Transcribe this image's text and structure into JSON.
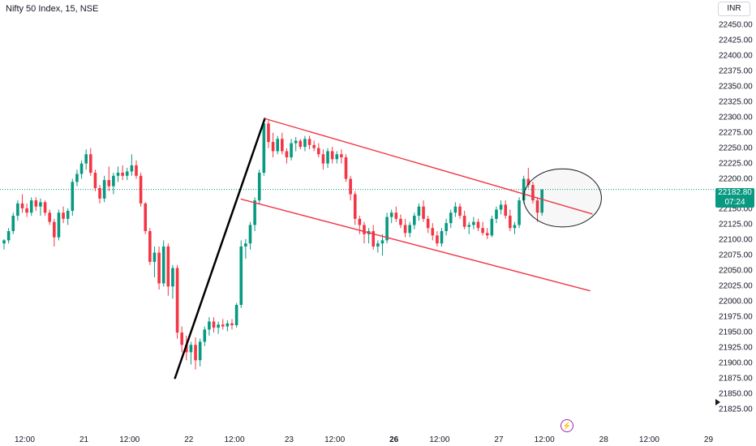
{
  "header": {
    "title": "Nifty 50 Index, 15, NSE",
    "currency": "INR"
  },
  "price_label": {
    "value": "22182.80",
    "countdown": "07:24"
  },
  "flash_icon": "lightning-icon",
  "colors": {
    "up": "#089981",
    "down": "#f23645",
    "trendline": "#f23645",
    "impulse": "#000000",
    "price_line": "#089981",
    "circle": "#131722"
  },
  "chart_data": {
    "type": "candlestick",
    "title": "Nifty 50 Index, 15, NSE",
    "ylim": [
      21815,
      22465
    ],
    "y_ticks": [
      22450,
      22425,
      22400,
      22375,
      22350,
      22325,
      22300,
      22275,
      22250,
      22225,
      22200,
      22175,
      22150,
      22125,
      22100,
      22075,
      22050,
      22025,
      22000,
      21975,
      21950,
      21925,
      21900,
      21875,
      21850,
      21825
    ],
    "y_tick_labels": [
      "22450.00",
      "22425.00",
      "22400.00",
      "22375.00",
      "22350.00",
      "22325.00",
      "22300.00",
      "22275.00",
      "22250.00",
      "22225.00",
      "22200.00",
      "22175.00",
      "22150.00",
      "22125.00",
      "22100.00",
      "22075.00",
      "22050.00",
      "22025.00",
      "22000.00",
      "21975.00",
      "21950.00",
      "21925.00",
      "21900.00",
      "21875.00",
      "21850.00",
      "21825.00"
    ],
    "x_labels": [
      {
        "label": "12:00",
        "index": 4,
        "bold": false
      },
      {
        "label": "21",
        "index": 17,
        "bold": false
      },
      {
        "label": "12:00",
        "index": 27,
        "bold": false
      },
      {
        "label": "22",
        "index": 40,
        "bold": false
      },
      {
        "label": "12:00",
        "index": 50,
        "bold": false
      },
      {
        "label": "23",
        "index": 62,
        "bold": false
      },
      {
        "label": "12:00",
        "index": 72,
        "bold": false
      },
      {
        "label": "26",
        "index": 85,
        "bold": true
      },
      {
        "label": "12:00",
        "index": 95,
        "bold": false
      },
      {
        "label": "27",
        "index": 108,
        "bold": false
      },
      {
        "label": "12:00",
        "index": 118,
        "bold": false
      },
      {
        "label": "28",
        "index": 131,
        "bold": false
      },
      {
        "label": "12:00",
        "index": 141,
        "bold": false
      },
      {
        "label": "29",
        "index": 154,
        "bold": false
      }
    ],
    "last_price": 22182.8,
    "candles": [
      [
        22095,
        22102,
        22085,
        22100
      ],
      [
        22100,
        22120,
        22095,
        22115
      ],
      [
        22115,
        22145,
        22110,
        22140
      ],
      [
        22140,
        22165,
        22132,
        22160
      ],
      [
        22160,
        22175,
        22145,
        22152
      ],
      [
        22152,
        22160,
        22138,
        22145
      ],
      [
        22145,
        22170,
        22140,
        22165
      ],
      [
        22165,
        22170,
        22148,
        22155
      ],
      [
        22155,
        22168,
        22140,
        22162
      ],
      [
        22162,
        22165,
        22140,
        22145
      ],
      [
        22145,
        22150,
        22125,
        22130
      ],
      [
        22130,
        22135,
        22090,
        22105
      ],
      [
        22105,
        22150,
        22100,
        22145
      ],
      [
        22145,
        22155,
        22128,
        22135
      ],
      [
        22135,
        22152,
        22125,
        22148
      ],
      [
        22148,
        22200,
        22140,
        22195
      ],
      [
        22195,
        22215,
        22188,
        22208
      ],
      [
        22208,
        22230,
        22200,
        22225
      ],
      [
        22225,
        22248,
        22215,
        22240
      ],
      [
        22240,
        22250,
        22205,
        22210
      ],
      [
        22210,
        22215,
        22180,
        22185
      ],
      [
        22185,
        22190,
        22160,
        22168
      ],
      [
        22168,
        22205,
        22162,
        22198
      ],
      [
        22198,
        22220,
        22180,
        22188
      ],
      [
        22188,
        22210,
        22175,
        22205
      ],
      [
        22205,
        22220,
        22195,
        22210
      ],
      [
        22210,
        22222,
        22198,
        22205
      ],
      [
        22205,
        22218,
        22198,
        22212
      ],
      [
        22212,
        22240,
        22205,
        22222
      ],
      [
        22222,
        22230,
        22200,
        22205
      ],
      [
        22205,
        22210,
        22155,
        22160
      ],
      [
        22160,
        22162,
        22110,
        22115
      ],
      [
        22115,
        22120,
        22060,
        22065
      ],
      [
        22065,
        22090,
        22040,
        22080
      ],
      [
        22080,
        22090,
        22020,
        22030
      ],
      [
        22030,
        22100,
        22025,
        22090
      ],
      [
        22090,
        22095,
        22010,
        22025
      ],
      [
        22025,
        22060,
        22005,
        22055
      ],
      [
        22055,
        22060,
        21940,
        21950
      ],
      [
        21950,
        21960,
        21918,
        21930
      ],
      [
        21930,
        21945,
        21905,
        21918
      ],
      [
        21918,
        21935,
        21898,
        21930
      ],
      [
        21930,
        21942,
        21890,
        21905
      ],
      [
        21905,
        21940,
        21895,
        21935
      ],
      [
        21935,
        21960,
        21928,
        21955
      ],
      [
        21955,
        21975,
        21945,
        21968
      ],
      [
        21968,
        21975,
        21950,
        21958
      ],
      [
        21958,
        21968,
        21948,
        21963
      ],
      [
        21963,
        21972,
        21955,
        21960
      ],
      [
        21960,
        21970,
        21952,
        21965
      ],
      [
        21965,
        21972,
        21955,
        21962
      ],
      [
        21962,
        21998,
        21958,
        21995
      ],
      [
        21995,
        22100,
        21990,
        22090
      ],
      [
        22090,
        22102,
        22070,
        22095
      ],
      [
        22095,
        22130,
        22085,
        22125
      ],
      [
        22125,
        22170,
        22115,
        22165
      ],
      [
        22165,
        22215,
        22160,
        22210
      ],
      [
        22210,
        22298,
        22205,
        22290
      ],
      [
        22290,
        22295,
        22250,
        22260
      ],
      [
        22260,
        22275,
        22235,
        22245
      ],
      [
        22245,
        22270,
        22240,
        22265
      ],
      [
        22265,
        22275,
        22240,
        22245
      ],
      [
        22245,
        22250,
        22225,
        22235
      ],
      [
        22235,
        22265,
        22230,
        22258
      ],
      [
        22258,
        22268,
        22245,
        22262
      ],
      [
        22262,
        22265,
        22248,
        22252
      ],
      [
        22252,
        22270,
        22245,
        22265
      ],
      [
        22265,
        22270,
        22248,
        22255
      ],
      [
        22255,
        22262,
        22245,
        22250
      ],
      [
        22250,
        22258,
        22235,
        22240
      ],
      [
        22240,
        22248,
        22215,
        22225
      ],
      [
        22225,
        22250,
        22218,
        22245
      ],
      [
        22245,
        22252,
        22225,
        22232
      ],
      [
        22232,
        22245,
        22225,
        22240
      ],
      [
        22240,
        22248,
        22225,
        22235
      ],
      [
        22235,
        22240,
        22195,
        22200
      ],
      [
        22200,
        22205,
        22165,
        22175
      ],
      [
        22175,
        22180,
        22125,
        22135
      ],
      [
        22135,
        22140,
        22110,
        22125
      ],
      [
        22125,
        22130,
        22095,
        22110
      ],
      [
        22110,
        22120,
        22095,
        22115
      ],
      [
        22115,
        22125,
        22085,
        22090
      ],
      [
        22090,
        22100,
        22080,
        22095
      ],
      [
        22095,
        22110,
        22075,
        22100
      ],
      [
        22100,
        22145,
        22095,
        22138
      ],
      [
        22138,
        22150,
        22128,
        22145
      ],
      [
        22145,
        22155,
        22130,
        22135
      ],
      [
        22135,
        22142,
        22120,
        22125
      ],
      [
        22125,
        22135,
        22105,
        22112
      ],
      [
        22112,
        22130,
        22105,
        22125
      ],
      [
        22125,
        22145,
        22118,
        22140
      ],
      [
        22140,
        22160,
        22132,
        22155
      ],
      [
        22155,
        22165,
        22130,
        22135
      ],
      [
        22135,
        22140,
        22112,
        22120
      ],
      [
        22120,
        22128,
        22100,
        22108
      ],
      [
        22108,
        22115,
        22090,
        22095
      ],
      [
        22095,
        22120,
        22090,
        22115
      ],
      [
        22115,
        22135,
        22108,
        22128
      ],
      [
        22128,
        22150,
        22120,
        22145
      ],
      [
        22145,
        22162,
        22138,
        22155
      ],
      [
        22155,
        22160,
        22135,
        22140
      ],
      [
        22140,
        22148,
        22118,
        22122
      ],
      [
        22122,
        22130,
        22110,
        22125
      ],
      [
        22125,
        22138,
        22118,
        22130
      ],
      [
        22130,
        22135,
        22115,
        22120
      ],
      [
        22120,
        22130,
        22108,
        22112
      ],
      [
        22112,
        22120,
        22102,
        22108
      ],
      [
        22108,
        22140,
        22105,
        22135
      ],
      [
        22135,
        22155,
        22128,
        22150
      ],
      [
        22150,
        22165,
        22142,
        22158
      ],
      [
        22158,
        22165,
        22135,
        22140
      ],
      [
        22140,
        22150,
        22115,
        22120
      ],
      [
        22120,
        22130,
        22110,
        22125
      ],
      [
        22125,
        22170,
        22120,
        22165
      ],
      [
        22165,
        22205,
        22160,
        22200
      ],
      [
        22200,
        22218,
        22185,
        22190
      ],
      [
        22190,
        22195,
        22160,
        22165
      ],
      [
        22165,
        22170,
        22130,
        22145
      ],
      [
        22145,
        22180,
        22140,
        22182.8
      ]
    ],
    "annotations": [
      {
        "type": "line",
        "name": "impulse",
        "from": {
          "index": 37.5,
          "price": 21876
        },
        "to": {
          "index": 57.2,
          "price": 22298
        }
      },
      {
        "type": "line",
        "name": "channel-upper",
        "from": {
          "index": 57.2,
          "price": 22298
        },
        "to": {
          "index": 129,
          "price": 22143
        }
      },
      {
        "type": "line",
        "name": "channel-lower",
        "from": {
          "index": 52,
          "price": 22167
        },
        "to": {
          "index": 128.5,
          "price": 22018
        }
      },
      {
        "type": "ellipse",
        "name": "highlight",
        "center": {
          "index": 122.5,
          "price": 22169
        },
        "rx_bars": 8,
        "ry_price": 36
      }
    ]
  }
}
